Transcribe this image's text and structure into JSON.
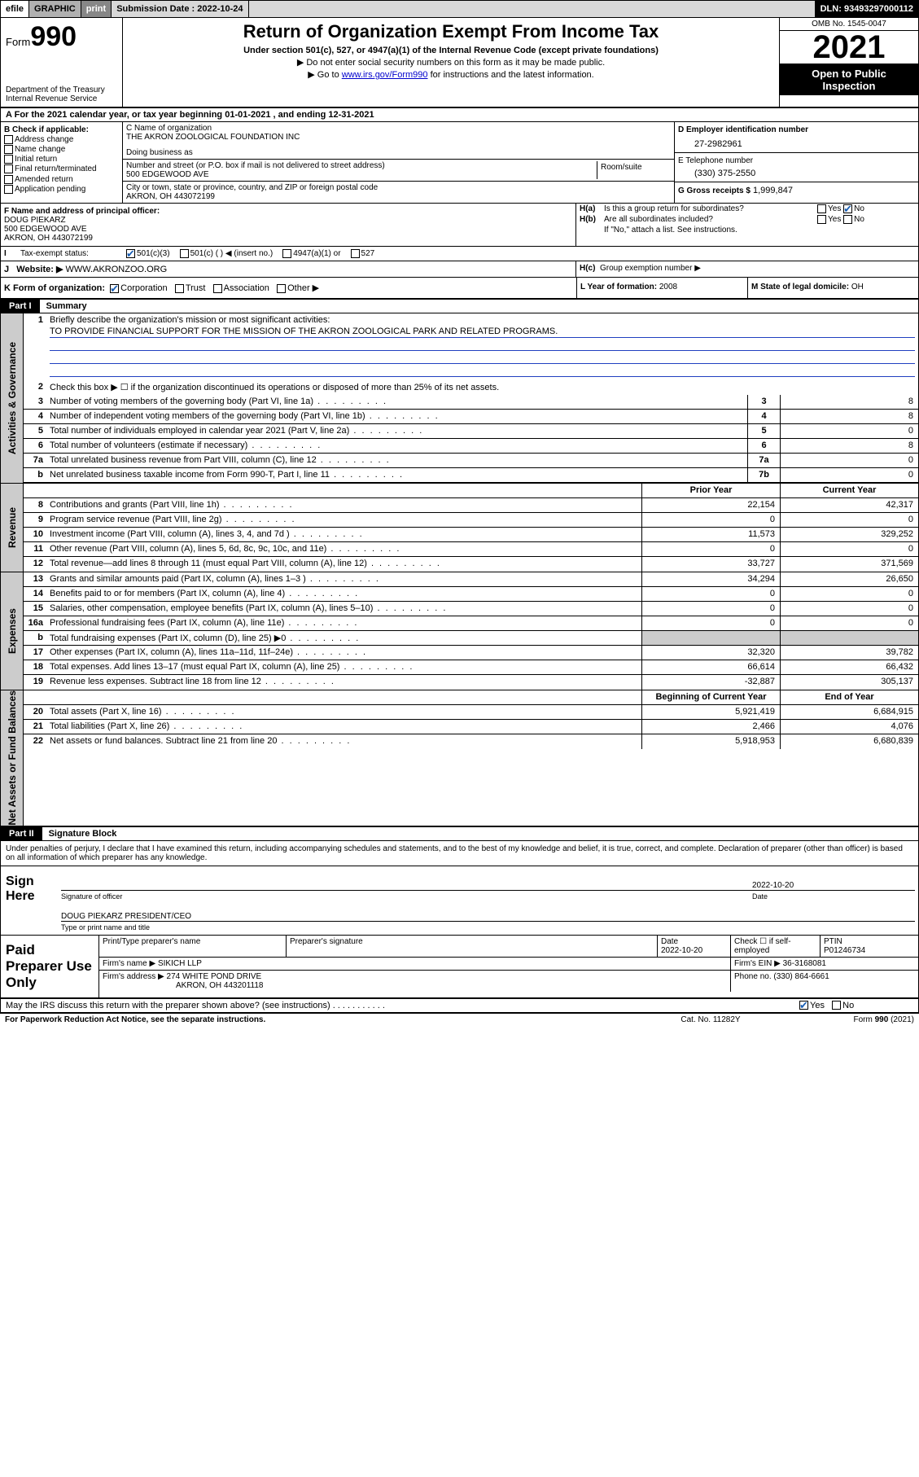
{
  "topbar": {
    "efile": "efile",
    "graphic": "GRAPHIC",
    "print": "print",
    "subdate_label": "Submission Date :",
    "subdate": "2022-10-24",
    "dln_label": "DLN:",
    "dln": "93493297000112"
  },
  "header": {
    "form_word": "Form",
    "form_num": "990",
    "dept": "Department of the Treasury",
    "irs": "Internal Revenue Service",
    "title": "Return of Organization Exempt From Income Tax",
    "sub1": "Under section 501(c), 527, or 4947(a)(1) of the Internal Revenue Code (except private foundations)",
    "sub2": "▶ Do not enter social security numbers on this form as it may be made public.",
    "sub3_pre": "▶ Go to ",
    "sub3_link": "www.irs.gov/Form990",
    "sub3_post": " for instructions and the latest information.",
    "omb": "OMB No. 1545-0047",
    "year": "2021",
    "inspect1": "Open to Public",
    "inspect2": "Inspection"
  },
  "lineA": {
    "text_pre": "For the 2021 calendar year, or tax year beginning ",
    "begin": "01-01-2021",
    "mid": " , and ending ",
    "end": "12-31-2021"
  },
  "B": {
    "label": "B Check if applicable:",
    "opts": [
      "Address change",
      "Name change",
      "Initial return",
      "Final return/terminated",
      "Amended return",
      "Application pending"
    ]
  },
  "C": {
    "label": "C Name of organization",
    "name": "THE AKRON ZOOLOGICAL FOUNDATION INC",
    "dba_label": "Doing business as",
    "dba": "",
    "street_label": "Number and street (or P.O. box if mail is not delivered to street address)",
    "room_label": "Room/suite",
    "street": "500 EDGEWOOD AVE",
    "city_label": "City or town, state or province, country, and ZIP or foreign postal code",
    "city": "AKRON, OH  443072199"
  },
  "D": {
    "label": "D Employer identification number",
    "val": "27-2982961"
  },
  "E": {
    "label": "E Telephone number",
    "val": "(330) 375-2550"
  },
  "G": {
    "label": "G Gross receipts $",
    "val": "1,999,847"
  },
  "F": {
    "label": "F Name and address of principal officer:",
    "name": "DOUG PIEKARZ",
    "addr1": "500 EDGEWOOD AVE",
    "addr2": "AKRON, OH  443072199"
  },
  "H": {
    "a_label": "Is this a group return for subordinates?",
    "a_yes": "Yes",
    "a_no": "No",
    "b_label": "Are all subordinates included?",
    "b_note": "If \"No,\" attach a list. See instructions.",
    "c_label": "Group exemption number ▶"
  },
  "I": {
    "label": "Tax-exempt status:",
    "o1": "501(c)(3)",
    "o2": "501(c) (  ) ◀ (insert no.)",
    "o3": "4947(a)(1) or",
    "o4": "527"
  },
  "J": {
    "label": "Website: ▶",
    "val": "WWW.AKRONZOO.ORG"
  },
  "K": {
    "label": "K Form of organization:",
    "opts": [
      "Corporation",
      "Trust",
      "Association",
      "Other ▶"
    ]
  },
  "L": {
    "label": "L Year of formation:",
    "val": "2008"
  },
  "M": {
    "label": "M State of legal domicile:",
    "val": "OH"
  },
  "partI": {
    "bar": "Part I",
    "title": "Summary"
  },
  "summary": {
    "q1_label": "Briefly describe the organization's mission or most significant activities:",
    "q1_text": "TO PROVIDE FINANCIAL SUPPORT FOR THE MISSION OF THE AKRON ZOOLOGICAL PARK AND RELATED PROGRAMS.",
    "q2": "Check this box ▶ ☐  if the organization discontinued its operations or disposed of more than 25% of its net assets.",
    "rows_num": [
      {
        "n": "3",
        "d": "Number of voting members of the governing body (Part VI, line 1a)",
        "box": "3",
        "v": "8"
      },
      {
        "n": "4",
        "d": "Number of independent voting members of the governing body (Part VI, line 1b)",
        "box": "4",
        "v": "8"
      },
      {
        "n": "5",
        "d": "Total number of individuals employed in calendar year 2021 (Part V, line 2a)",
        "box": "5",
        "v": "0"
      },
      {
        "n": "6",
        "d": "Total number of volunteers (estimate if necessary)",
        "box": "6",
        "v": "8"
      },
      {
        "n": "7a",
        "d": "Total unrelated business revenue from Part VIII, column (C), line 12",
        "box": "7a",
        "v": "0"
      },
      {
        "n": "b",
        "d": "Net unrelated business taxable income from Form 990-T, Part I, line 11",
        "box": "7b",
        "v": "0"
      }
    ],
    "hdr_prior": "Prior Year",
    "hdr_curr": "Current Year",
    "revenue": [
      {
        "n": "8",
        "d": "Contributions and grants (Part VIII, line 1h)",
        "p": "22,154",
        "c": "42,317"
      },
      {
        "n": "9",
        "d": "Program service revenue (Part VIII, line 2g)",
        "p": "0",
        "c": "0"
      },
      {
        "n": "10",
        "d": "Investment income (Part VIII, column (A), lines 3, 4, and 7d )",
        "p": "11,573",
        "c": "329,252"
      },
      {
        "n": "11",
        "d": "Other revenue (Part VIII, column (A), lines 5, 6d, 8c, 9c, 10c, and 11e)",
        "p": "0",
        "c": "0"
      },
      {
        "n": "12",
        "d": "Total revenue—add lines 8 through 11 (must equal Part VIII, column (A), line 12)",
        "p": "33,727",
        "c": "371,569"
      }
    ],
    "expenses": [
      {
        "n": "13",
        "d": "Grants and similar amounts paid (Part IX, column (A), lines 1–3 )",
        "p": "34,294",
        "c": "26,650"
      },
      {
        "n": "14",
        "d": "Benefits paid to or for members (Part IX, column (A), line 4)",
        "p": "0",
        "c": "0"
      },
      {
        "n": "15",
        "d": "Salaries, other compensation, employee benefits (Part IX, column (A), lines 5–10)",
        "p": "0",
        "c": "0"
      },
      {
        "n": "16a",
        "d": "Professional fundraising fees (Part IX, column (A), line 11e)",
        "p": "0",
        "c": "0"
      },
      {
        "n": "b",
        "d": "Total fundraising expenses (Part IX, column (D), line 25) ▶0",
        "p": "",
        "c": "",
        "grey": true
      },
      {
        "n": "17",
        "d": "Other expenses (Part IX, column (A), lines 11a–11d, 11f–24e)",
        "p": "32,320",
        "c": "39,782"
      },
      {
        "n": "18",
        "d": "Total expenses. Add lines 13–17 (must equal Part IX, column (A), line 25)",
        "p": "66,614",
        "c": "66,432"
      },
      {
        "n": "19",
        "d": "Revenue less expenses. Subtract line 18 from line 12",
        "p": "-32,887",
        "c": "305,137"
      }
    ],
    "hdr_begin": "Beginning of Current Year",
    "hdr_end": "End of Year",
    "netassets": [
      {
        "n": "20",
        "d": "Total assets (Part X, line 16)",
        "p": "5,921,419",
        "c": "6,684,915"
      },
      {
        "n": "21",
        "d": "Total liabilities (Part X, line 26)",
        "p": "2,466",
        "c": "4,076"
      },
      {
        "n": "22",
        "d": "Net assets or fund balances. Subtract line 21 from line 20",
        "p": "5,918,953",
        "c": "6,680,839"
      }
    ],
    "side_act": "Activities & Governance",
    "side_rev": "Revenue",
    "side_exp": "Expenses",
    "side_net": "Net Assets or Fund Balances"
  },
  "partII": {
    "bar": "Part II",
    "title": "Signature Block"
  },
  "sig": {
    "decl": "Under penalties of perjury, I declare that I have examined this return, including accompanying schedules and statements, and to the best of my knowledge and belief, it is true, correct, and complete. Declaration of preparer (other than officer) is based on all information of which preparer has any knowledge.",
    "sign_here": "Sign Here",
    "sig_officer": "Signature of officer",
    "date": "Date",
    "date_val": "2022-10-20",
    "name": "DOUG PIEKARZ  PRESIDENT/CEO",
    "name_lab": "Type or print name and title"
  },
  "prep": {
    "label": "Paid Preparer Use Only",
    "h1": "Print/Type preparer's name",
    "h2": "Preparer's signature",
    "h3": "Date",
    "h3v": "2022-10-20",
    "h4": "Check ☐ if self-employed",
    "h5": "PTIN",
    "h5v": "P01246734",
    "firm_label": "Firm's name    ▶",
    "firm": "SIKICH LLP",
    "ein_label": "Firm's EIN ▶",
    "ein": "36-3168081",
    "addr_label": "Firm's address ▶",
    "addr1": "274 WHITE POND DRIVE",
    "addr2": "AKRON, OH  443201118",
    "phone_label": "Phone no.",
    "phone": "(330) 864-6661"
  },
  "discuss": {
    "q": "May the IRS discuss this return with the preparer shown above? (see instructions)",
    "yes": "Yes",
    "no": "No"
  },
  "footer": {
    "l": "For Paperwork Reduction Act Notice, see the separate instructions.",
    "m": "Cat. No. 11282Y",
    "r": "Form 990 (2021)"
  },
  "colors": {
    "link": "#0000cc",
    "check": "#1a5fb4",
    "uline": "#2040c0"
  }
}
